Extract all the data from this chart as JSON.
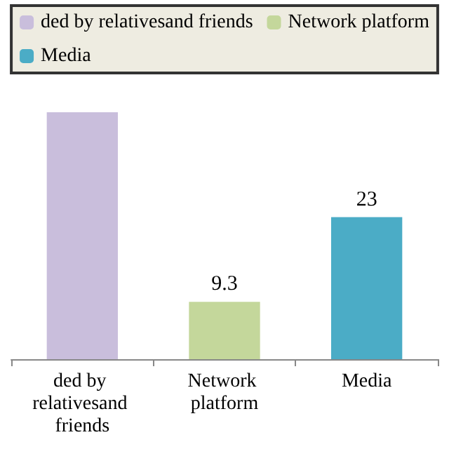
{
  "chart_data": {
    "type": "bar",
    "categories": [
      "ded by relativesand friends",
      "Network platform",
      "Media"
    ],
    "stacked": true,
    "legend": "top",
    "series": [
      {
        "name": "ded by relativesand friends",
        "color": "#c9bedc",
        "values": [
          40,
          null,
          null
        ],
        "value_labels": [
          null,
          null,
          null
        ]
      },
      {
        "name": "Network platform",
        "color": "#c4d79b",
        "values": [
          null,
          9.3,
          null
        ],
        "value_labels": [
          null,
          "9.3",
          null
        ]
      },
      {
        "name": "Media",
        "color": "#4bacc6",
        "values": [
          null,
          null,
          23
        ],
        "value_labels": [
          null,
          null,
          "23"
        ]
      }
    ]
  }
}
